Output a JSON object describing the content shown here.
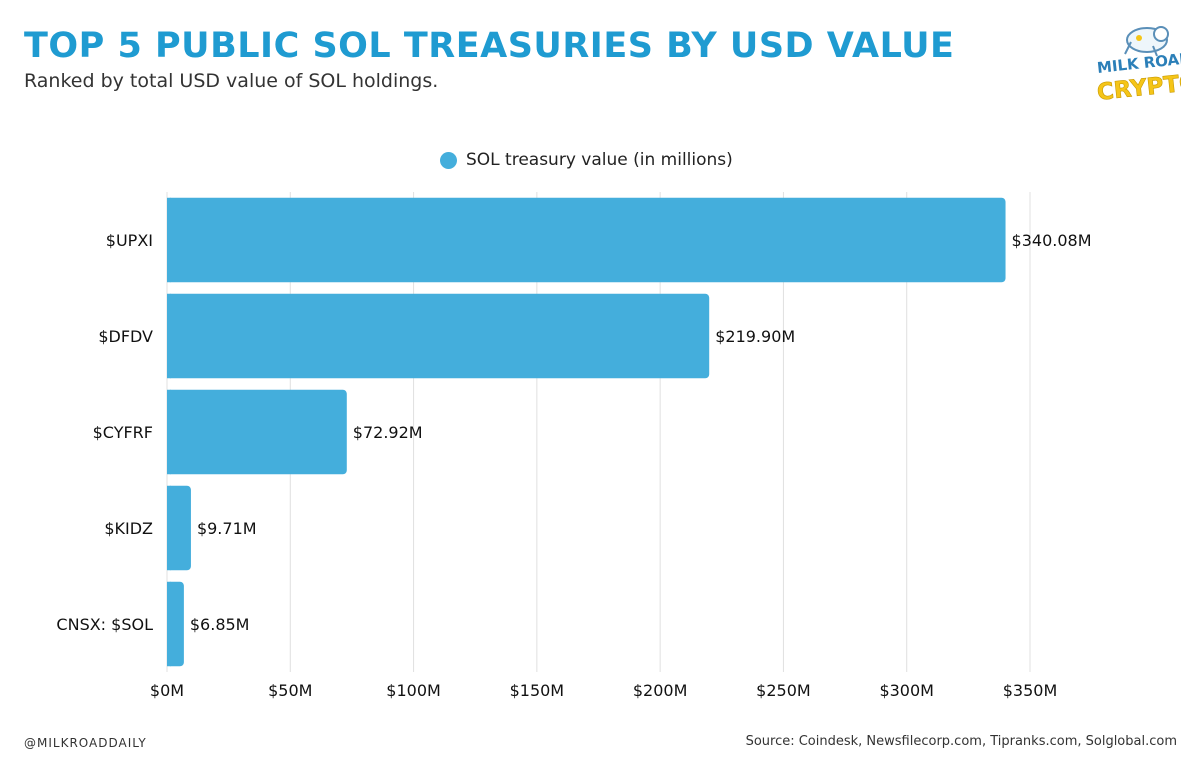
{
  "header": {
    "title": "TOP 5 PUBLIC SOL TREASURIES BY USD VALUE",
    "subtitle": "Ranked by total USD value of SOL holdings.",
    "logo_text_top": "MILK ROAD",
    "logo_text_bottom": "CRYPTO"
  },
  "footer": {
    "handle": "@MILKROADDAILY",
    "source": "Source: Coindesk, Newsfilecorp.com, Tipranks.com, Solglobal.com"
  },
  "colors": {
    "title": "#1f9bd1",
    "bar": "#44aedc",
    "grid": "#e0e0e0",
    "logo_yellow": "#f5c518"
  },
  "chart_data": {
    "type": "bar",
    "orientation": "horizontal",
    "legend_position": "top-center",
    "grid": true,
    "categories": [
      "$UPXI",
      "$DFDV",
      "$CYFRF",
      "$KIDZ",
      "CNSX: $SOL"
    ],
    "series": [
      {
        "name": "SOL treasury value (in millions)",
        "values": [
          340.08,
          219.9,
          72.92,
          9.71,
          6.85
        ],
        "labels": [
          "$340.08M",
          "$219.90M",
          "$72.92M",
          "$9.71M",
          "$6.85M"
        ]
      }
    ],
    "xlim": [
      0,
      350
    ],
    "xticks": [
      0,
      50,
      100,
      150,
      200,
      250,
      300,
      350
    ],
    "xtick_labels": [
      "$0M",
      "$50M",
      "$100M",
      "$150M",
      "$200M",
      "$250M",
      "$300M",
      "$350M"
    ]
  }
}
